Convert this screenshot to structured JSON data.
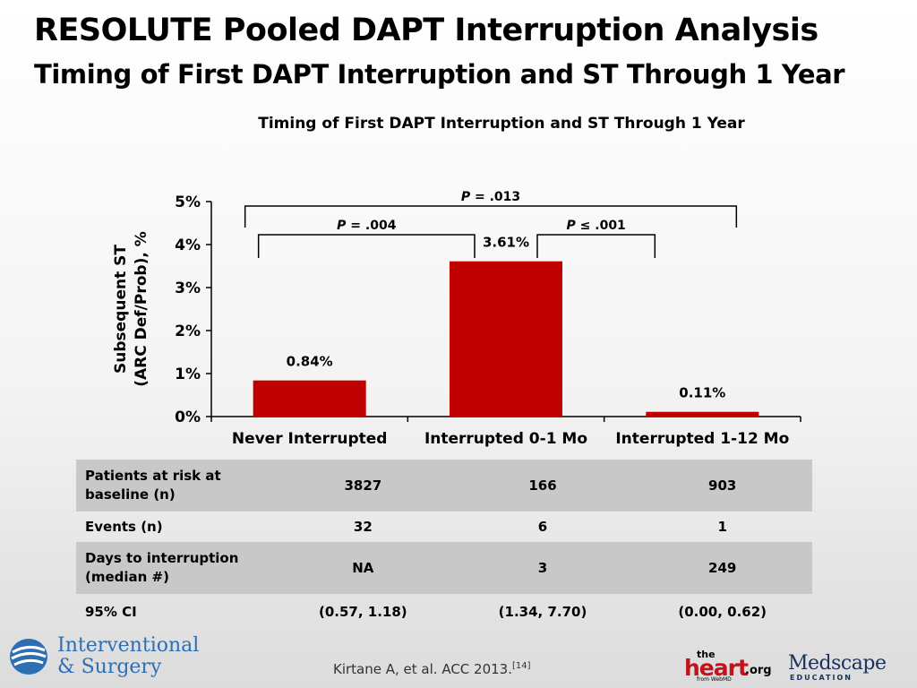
{
  "slide": {
    "title": "RESOLUTE Pooled DAPT Interruption Analysis",
    "subtitle": "Timing of First DAPT Interruption and ST Through 1 Year"
  },
  "chart_data": {
    "type": "bar",
    "title": "Timing of First DAPT Interruption and ST Through 1 Year",
    "ylabel_lines": [
      "Subsequent ST",
      "(ARC Def/Prob), %"
    ],
    "categories": [
      "Never Interrupted",
      "Interrupted 0-1 Mo",
      "Interrupted 1-12 Mo"
    ],
    "values": [
      0.84,
      3.61,
      0.11
    ],
    "value_labels": [
      "0.84%",
      "3.61%",
      "0.11%"
    ],
    "ylim": [
      0,
      5
    ],
    "yticks": [
      0,
      1,
      2,
      3,
      4,
      5
    ],
    "ytick_labels": [
      "0%",
      "1%",
      "2%",
      "3%",
      "4%",
      "5%"
    ],
    "bar_color": "#c00000",
    "grid": false,
    "comparisons": [
      {
        "from": 0,
        "to": 1,
        "p_label": "P",
        "p_text": " = .004"
      },
      {
        "from": 1,
        "to": 2,
        "p_label": "P",
        "p_text": " ≤ .001"
      },
      {
        "from": 0,
        "to": 2,
        "p_label": "P",
        "p_text": " = .013"
      }
    ]
  },
  "table": {
    "rows": [
      {
        "label": "Patients at risk at\nbaseline  (n)",
        "values": [
          "3827",
          "166",
          "903"
        ],
        "shaded": true
      },
      {
        "label": "Events (n)",
        "values": [
          "32",
          "6",
          "1"
        ],
        "shaded": false
      },
      {
        "label": "Days to interruption\n(median #)",
        "values": [
          "NA",
          "3",
          "249"
        ],
        "shaded": true
      },
      {
        "label": "95% CI",
        "values": [
          "(0.57, 1.18)",
          "(1.34, 7.70)",
          "(0.00, 0.62)"
        ],
        "shaded": false
      }
    ]
  },
  "footer": {
    "logo_left_line1": "Interventional",
    "logo_left_line2": "& Surgery",
    "citation": "Kirtane A, et al. ACC 2013.",
    "citation_ref": "[14]",
    "heart_the": "the",
    "heart_heart": "heart",
    "heart_org": ".org",
    "heart_from": "from WebMD",
    "medscape_name": "Medscape",
    "medscape_sub": "EDUCATION"
  }
}
